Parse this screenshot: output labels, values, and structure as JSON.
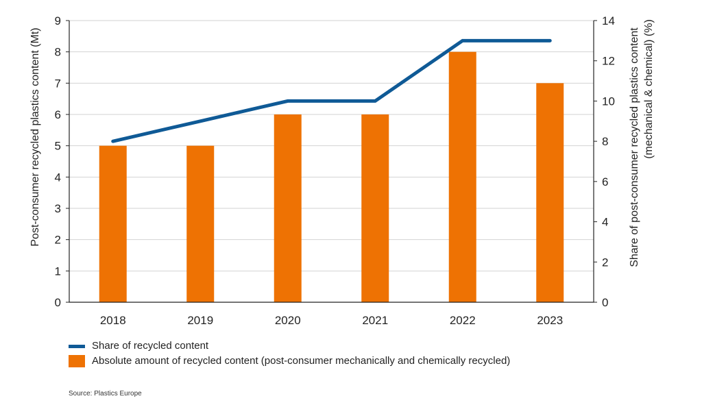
{
  "chart_data": {
    "type": "bar+line",
    "categories": [
      "2018",
      "2019",
      "2020",
      "2021",
      "2022",
      "2023"
    ],
    "series": [
      {
        "name": "Absolute amount of recycled content (post-consumer mechanically and chemically recycled)",
        "type": "bar",
        "axis": "left",
        "color": "#ee7203",
        "values": [
          5,
          5,
          6,
          6,
          8,
          7
        ]
      },
      {
        "name": "Share of recycled content",
        "type": "line",
        "axis": "right",
        "color": "#0f5a96",
        "values": [
          8,
          9,
          10,
          10,
          13,
          13
        ]
      }
    ],
    "y_left": {
      "label": "Post-consumer recycled plastics content (Mt)",
      "ylim": [
        0,
        9
      ],
      "ticks": [
        "0",
        "1",
        "2",
        "3",
        "4",
        "5",
        "6",
        "7",
        "8",
        "9"
      ]
    },
    "y_right": {
      "label_line1": "Share of post-consumer recycled plastics content",
      "label_line2": "(mechanical & chemical) (%)",
      "ylim": [
        0,
        14
      ],
      "ticks": [
        "0",
        "2",
        "4",
        "6",
        "8",
        "10",
        "12",
        "14"
      ]
    },
    "grid": true,
    "legend_position": "bottom-left"
  },
  "legend": {
    "line_label": "Share of recycled content",
    "bar_label": "Absolute amount of recycled content (post-consumer mechanically and chemically recycled)"
  },
  "source": "Source: Plastics Europe"
}
